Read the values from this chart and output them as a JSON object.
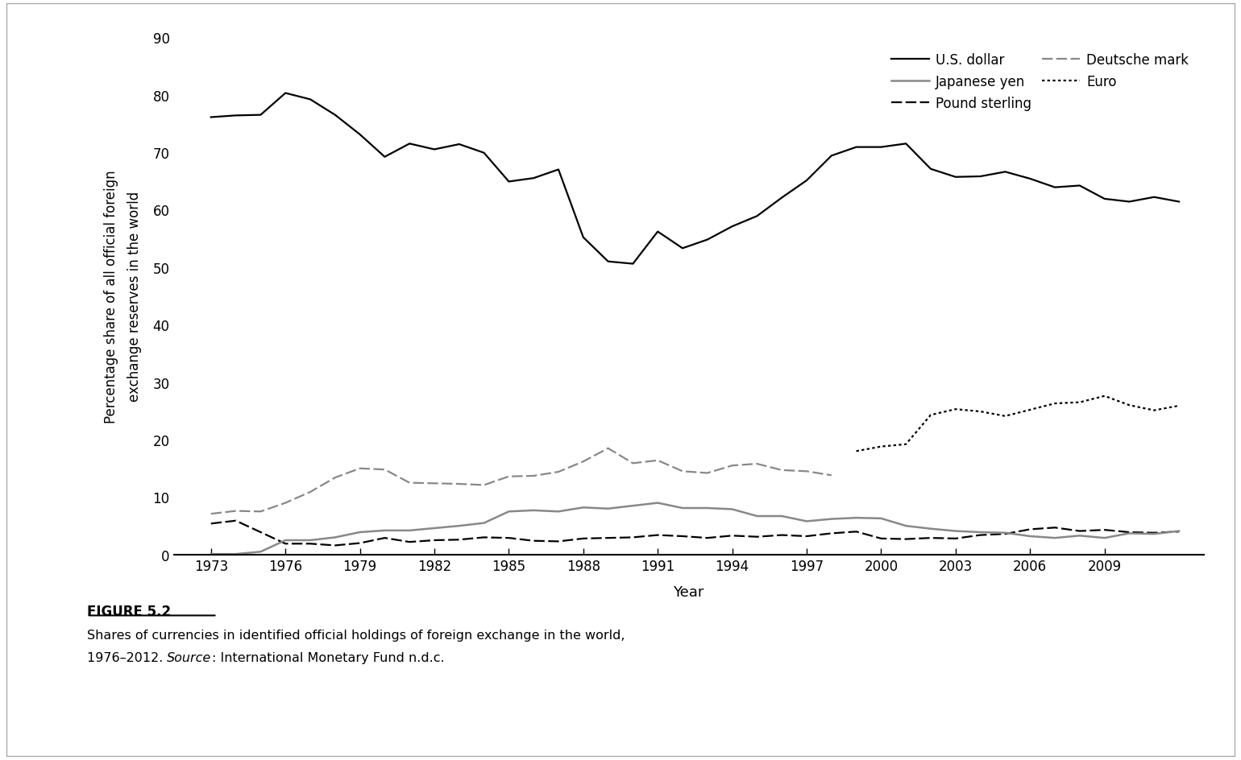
{
  "years_usd": [
    1973,
    1974,
    1975,
    1976,
    1977,
    1978,
    1979,
    1980,
    1981,
    1982,
    1983,
    1984,
    1985,
    1986,
    1987,
    1988,
    1989,
    1990,
    1991,
    1992,
    1993,
    1994,
    1995,
    1996,
    1997,
    1998,
    1999,
    2000,
    2001,
    2002,
    2003,
    2004,
    2005,
    2006,
    2007,
    2008,
    2009,
    2010,
    2011,
    2012
  ],
  "usd": [
    76.1,
    76.4,
    76.5,
    80.3,
    79.2,
    76.5,
    73.1,
    69.2,
    71.5,
    70.5,
    71.4,
    69.9,
    64.9,
    65.5,
    67.0,
    55.2,
    51.0,
    50.6,
    56.2,
    53.3,
    54.8,
    57.1,
    58.9,
    62.1,
    65.1,
    69.4,
    70.9,
    70.9,
    71.5,
    67.1,
    65.7,
    65.8,
    66.6,
    65.4,
    63.9,
    64.2,
    61.9,
    61.4,
    62.2,
    61.4
  ],
  "years_pound": [
    1973,
    1974,
    1975,
    1976,
    1977,
    1978,
    1979,
    1980,
    1981,
    1982,
    1983,
    1984,
    1985,
    1986,
    1987,
    1988,
    1989,
    1990,
    1991,
    1992,
    1993,
    1994,
    1995,
    1996,
    1997,
    1998,
    1999,
    2000,
    2001,
    2002,
    2003,
    2004,
    2005,
    2006,
    2007,
    2008,
    2009,
    2010,
    2011,
    2012
  ],
  "pound": [
    5.4,
    5.9,
    3.9,
    1.9,
    1.9,
    1.6,
    2.0,
    2.9,
    2.2,
    2.5,
    2.6,
    3.0,
    2.9,
    2.4,
    2.3,
    2.8,
    2.9,
    3.0,
    3.4,
    3.2,
    2.9,
    3.3,
    3.1,
    3.4,
    3.2,
    3.7,
    4.0,
    2.8,
    2.7,
    2.9,
    2.8,
    3.4,
    3.6,
    4.4,
    4.7,
    4.1,
    4.3,
    3.9,
    3.8,
    4.0
  ],
  "years_yen": [
    1973,
    1974,
    1975,
    1976,
    1977,
    1978,
    1979,
    1980,
    1981,
    1982,
    1983,
    1984,
    1985,
    1986,
    1987,
    1988,
    1989,
    1990,
    1991,
    1992,
    1993,
    1994,
    1995,
    1996,
    1997,
    1998,
    1999,
    2000,
    2001,
    2002,
    2003,
    2004,
    2005,
    2006,
    2007,
    2008,
    2009,
    2010,
    2011,
    2012
  ],
  "yen": [
    0.1,
    0.1,
    0.5,
    2.5,
    2.5,
    3.0,
    3.9,
    4.2,
    4.2,
    4.6,
    5.0,
    5.5,
    7.5,
    7.7,
    7.5,
    8.2,
    8.0,
    8.5,
    9.0,
    8.1,
    8.1,
    7.9,
    6.7,
    6.7,
    5.8,
    6.2,
    6.4,
    6.3,
    5.0,
    4.5,
    4.1,
    3.9,
    3.8,
    3.2,
    2.9,
    3.3,
    2.9,
    3.7,
    3.6,
    4.1
  ],
  "years_dm": [
    1973,
    1974,
    1975,
    1976,
    1977,
    1978,
    1979,
    1980,
    1981,
    1982,
    1983,
    1984,
    1985,
    1986,
    1987,
    1988,
    1989,
    1990,
    1991,
    1992,
    1993,
    1994,
    1995,
    1996,
    1997,
    1998
  ],
  "dm": [
    7.1,
    7.6,
    7.5,
    9.0,
    10.9,
    13.4,
    15.0,
    14.8,
    12.5,
    12.4,
    12.3,
    12.1,
    13.6,
    13.7,
    14.4,
    16.2,
    18.5,
    15.9,
    16.4,
    14.5,
    14.2,
    15.5,
    15.8,
    14.7,
    14.5,
    13.8
  ],
  "years_euro": [
    1999,
    2000,
    2001,
    2002,
    2003,
    2004,
    2005,
    2006,
    2007,
    2008,
    2009,
    2010,
    2011,
    2012
  ],
  "euro": [
    18.0,
    18.8,
    19.2,
    24.3,
    25.3,
    24.9,
    24.1,
    25.2,
    26.3,
    26.5,
    27.6,
    26.0,
    25.1,
    25.9
  ],
  "ylabel": "Percentage share of all official foreign\nexchange reserves in the world",
  "xlabel": "Year",
  "ylim": [
    0,
    90
  ],
  "yticks": [
    0,
    10,
    20,
    30,
    40,
    50,
    60,
    70,
    80,
    90
  ],
  "xticks": [
    1973,
    1976,
    1979,
    1982,
    1985,
    1988,
    1991,
    1994,
    1997,
    2000,
    2003,
    2006,
    2009
  ],
  "xlim_left": 1971.5,
  "xlim_right": 2013.0,
  "figure_label": "FIGURE 5.2",
  "caption_line1": "Shares of currencies in identified official holdings of foreign exchange in the world,",
  "caption_line2_pre": "1976–2012. ",
  "caption_line2_italic": "Source",
  "caption_line2_post": ": International Monetary Fund n.d.c.",
  "line_color_black": "#000000",
  "line_color_gray": "#888888",
  "border_color": "#aaaaaa"
}
